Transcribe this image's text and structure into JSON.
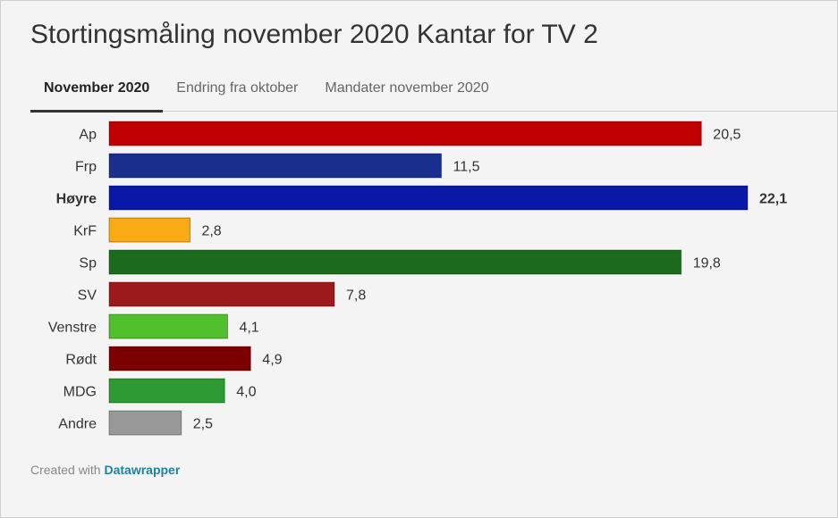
{
  "title": "Stortingsmåling november 2020 Kantar for TV 2",
  "tabs": [
    {
      "label": "November 2020",
      "active": true
    },
    {
      "label": "Endring fra oktober",
      "active": false
    },
    {
      "label": "Mandater november 2020",
      "active": false
    }
  ],
  "footer": {
    "prefix": "Created with",
    "brand": "Datawrapper"
  },
  "chart_data": {
    "type": "bar",
    "orientation": "horizontal",
    "title": "",
    "xlabel": "",
    "ylabel": "",
    "xlim": [
      0,
      22.1
    ],
    "grid": false,
    "categories": [
      "Ap",
      "Frp",
      "Høyre",
      "KrF",
      "Sp",
      "SV",
      "Venstre",
      "Rødt",
      "MDG",
      "Andre"
    ],
    "values": [
      20.5,
      11.5,
      22.1,
      2.8,
      19.8,
      7.8,
      4.1,
      4.9,
      4.0,
      2.5
    ],
    "value_labels": [
      "20,5",
      "11,5",
      "22,1",
      "2,8",
      "19,8",
      "7,8",
      "4,1",
      "4,9",
      "4,0",
      "2,5"
    ],
    "highlighted": "Høyre",
    "colors": [
      "#c00000",
      "#1a2f8d",
      "#0a18a8",
      "#f9aa14",
      "#1d6b1d",
      "#9d1a1c",
      "#50c02c",
      "#7b0000",
      "#2d9a34",
      "#999999"
    ]
  }
}
